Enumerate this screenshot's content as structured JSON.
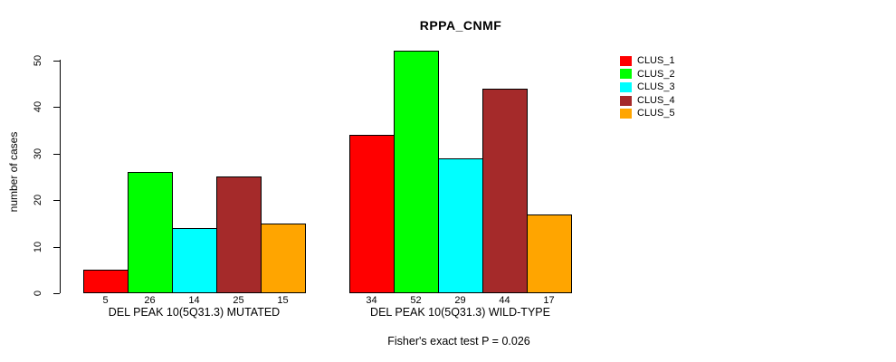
{
  "chart_data": {
    "type": "bar",
    "title": "RPPA_CNMF",
    "ylabel": "number of cases",
    "ylim": [
      0,
      52
    ],
    "yticks": [
      0,
      10,
      20,
      30,
      40,
      50
    ],
    "grid": false,
    "legend_position": "top-right-outside",
    "series": [
      {
        "name": "CLUS_1",
        "color": "#FF0000"
      },
      {
        "name": "CLUS_2",
        "color": "#00FF00"
      },
      {
        "name": "CLUS_3",
        "color": "#00FFFF"
      },
      {
        "name": "CLUS_4",
        "color": "#A52A2A"
      },
      {
        "name": "CLUS_5",
        "color": "#FFA500"
      }
    ],
    "groups": [
      {
        "label": "DEL PEAK 10(5Q31.3) MUTATED",
        "values": [
          5,
          26,
          14,
          25,
          15
        ]
      },
      {
        "label": "DEL PEAK 10(5Q31.3) WILD-TYPE",
        "values": [
          34,
          52,
          29,
          44,
          17
        ]
      }
    ],
    "footnote": "Fisher's exact test P = 0.026",
    "colors": {
      "axis": "#000000",
      "bar_border": "#000000",
      "background": "#FFFFFF",
      "text": "#000000"
    }
  }
}
